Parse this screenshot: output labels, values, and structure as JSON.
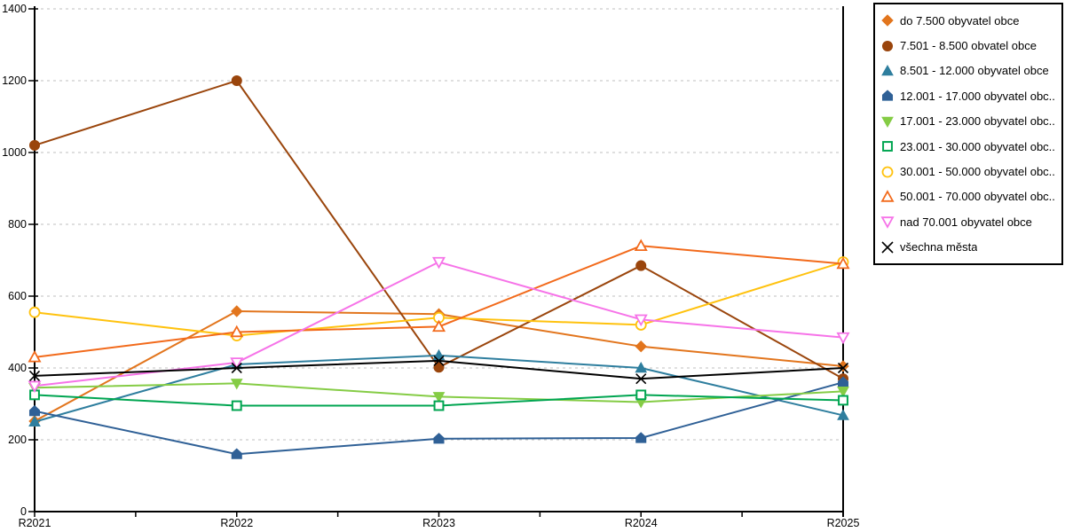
{
  "chart_data": {
    "type": "line",
    "title": "",
    "xlabel": "",
    "ylabel": "",
    "categories": [
      "R2021",
      "R2022",
      "R2023",
      "R2024",
      "R2025"
    ],
    "ylim": [
      0,
      1400
    ],
    "ytick_step": 200,
    "ytick_labels": [
      "0",
      "200",
      "400",
      "600",
      "800",
      "1000",
      "1200",
      "1400"
    ],
    "grid": "horizontal-dashed",
    "legend_position": "right",
    "series": [
      {
        "name": "do 7.500 obyvatel obce",
        "color": "#E2751D",
        "marker": "diamond",
        "fill": "solid",
        "values": [
          252,
          558,
          550,
          460,
          405
        ]
      },
      {
        "name": "7.501 - 8.500 obvatel obce",
        "color": "#9A450C",
        "marker": "circle",
        "fill": "solid",
        "values": [
          1020,
          1200,
          402,
          685,
          370
        ]
      },
      {
        "name": "8.501 - 12.000 obyvatel obce",
        "color": "#2E7E9E",
        "marker": "triangle-up",
        "fill": "solid",
        "values": [
          250,
          410,
          435,
          400,
          268
        ]
      },
      {
        "name": "12.001 - 17.000 obyvatel obc...",
        "color": "#2F6096",
        "marker": "pentagon",
        "fill": "solid",
        "values": [
          280,
          160,
          203,
          205,
          360
        ]
      },
      {
        "name": "17.001 - 23.000 obyvatel obc...",
        "color": "#85CC45",
        "marker": "triangle-down",
        "fill": "solid",
        "values": [
          345,
          357,
          320,
          305,
          335
        ]
      },
      {
        "name": "23.001 - 30.000 obyvatel obc...",
        "color": "#00A551",
        "marker": "square",
        "fill": "hollow",
        "values": [
          325,
          295,
          295,
          325,
          310
        ]
      },
      {
        "name": "30.001 - 50.000 obyvatel obc...",
        "color": "#FFC20E",
        "marker": "circle",
        "fill": "hollow",
        "values": [
          555,
          490,
          540,
          520,
          695
        ]
      },
      {
        "name": "50.001 - 70.000 obyvatel obc...",
        "color": "#F26A1B",
        "marker": "triangle-up",
        "fill": "hollow",
        "values": [
          430,
          500,
          515,
          740,
          690
        ]
      },
      {
        "name": "nad 70.001 obyvatel obce",
        "color": "#F673E8",
        "marker": "triangle-down",
        "fill": "hollow",
        "values": [
          350,
          415,
          695,
          535,
          485
        ]
      },
      {
        "name": "všechna města",
        "color": "#000000",
        "marker": "x",
        "fill": "line",
        "values": [
          378,
          400,
          420,
          370,
          400
        ]
      }
    ]
  }
}
